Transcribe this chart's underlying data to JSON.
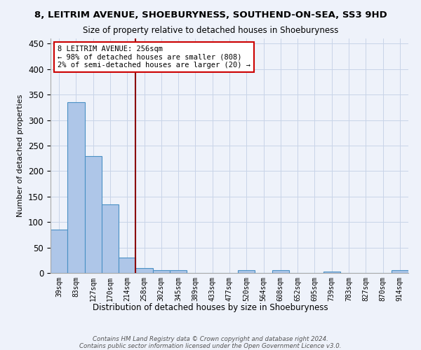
{
  "title": "8, LEITRIM AVENUE, SHOEBURYNESS, SOUTHEND-ON-SEA, SS3 9HD",
  "subtitle": "Size of property relative to detached houses in Shoeburyness",
  "xlabel": "Distribution of detached houses by size in Shoeburyness",
  "ylabel": "Number of detached properties",
  "categories": [
    "39sqm",
    "83sqm",
    "127sqm",
    "170sqm",
    "214sqm",
    "258sqm",
    "302sqm",
    "345sqm",
    "389sqm",
    "433sqm",
    "477sqm",
    "520sqm",
    "564sqm",
    "608sqm",
    "652sqm",
    "695sqm",
    "739sqm",
    "783sqm",
    "827sqm",
    "870sqm",
    "914sqm"
  ],
  "values": [
    85,
    335,
    230,
    135,
    30,
    10,
    5,
    5,
    0,
    0,
    0,
    5,
    0,
    5,
    0,
    0,
    3,
    0,
    0,
    0,
    5
  ],
  "bar_color": "#aec6e8",
  "bar_edge_color": "#4a90c4",
  "vline_x_index": 5,
  "vline_color": "#8b0000",
  "annotation_text": "8 LEITRIM AVENUE: 256sqm\n← 98% of detached houses are smaller (808)\n2% of semi-detached houses are larger (20) →",
  "annotation_box_color": "white",
  "annotation_box_edge_color": "#cc0000",
  "ylim": [
    0,
    460
  ],
  "yticks": [
    0,
    50,
    100,
    150,
    200,
    250,
    300,
    350,
    400,
    450
  ],
  "footnote": "Contains HM Land Registry data © Crown copyright and database right 2024.\nContains public sector information licensed under the Open Government Licence v3.0.",
  "bg_color": "#eef2fa",
  "grid_color": "#c8d4e8"
}
